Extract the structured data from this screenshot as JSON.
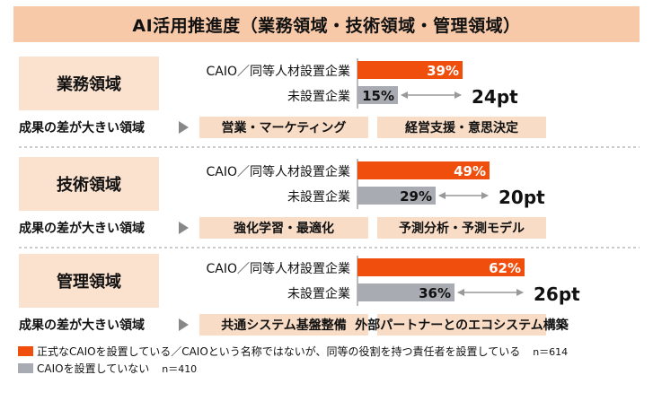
{
  "title": "AI活用推進度（業務領域・技術領域・管理領域）",
  "colors": {
    "caio": "#f04e0c",
    "none": "#a9abb3",
    "panel": "#fbe2cf",
    "tag": "#f8dcc6",
    "arrow": "#999999"
  },
  "chart_data": {
    "type": "bar",
    "xlim": [
      0,
      100
    ],
    "group_label_prefix": "成果の差が大きい領域",
    "groups": [
      {
        "name": "業務領域",
        "rows": [
          {
            "label": "CAIO／同等人材設置企業",
            "value": 39,
            "value_label": "39%",
            "series": "caio"
          },
          {
            "label": "未設置企業",
            "value": 15,
            "value_label": "15%",
            "series": "none"
          }
        ],
        "diff_label": "24pt",
        "areas": [
          "営業・マーケティング",
          "経営支援・意思決定"
        ]
      },
      {
        "name": "技術領域",
        "rows": [
          {
            "label": "CAIO／同等人材設置企業",
            "value": 49,
            "value_label": "49%",
            "series": "caio"
          },
          {
            "label": "未設置企業",
            "value": 29,
            "value_label": "29%",
            "series": "none"
          }
        ],
        "diff_label": "20pt",
        "areas": [
          "強化学習・最適化",
          "予測分析・予測モデル"
        ]
      },
      {
        "name": "管理領域",
        "rows": [
          {
            "label": "CAIO／同等人材設置企業",
            "value": 62,
            "value_label": "62%",
            "series": "caio"
          },
          {
            "label": "未設置企業",
            "value": 36,
            "value_label": "36%",
            "series": "none"
          }
        ],
        "diff_label": "26pt",
        "areas": [
          "共通システム基盤整備",
          "外部パートナーとのエコシステム構築"
        ]
      }
    ],
    "legend": [
      {
        "series": "caio",
        "label": "正式なCAIOを設置している／CAIOという名称ではないが、同等の役割を持つ責任者を設置している",
        "n": "n＝614"
      },
      {
        "series": "none",
        "label": "CAIOを設置していない",
        "n": "n＝410"
      }
    ]
  }
}
